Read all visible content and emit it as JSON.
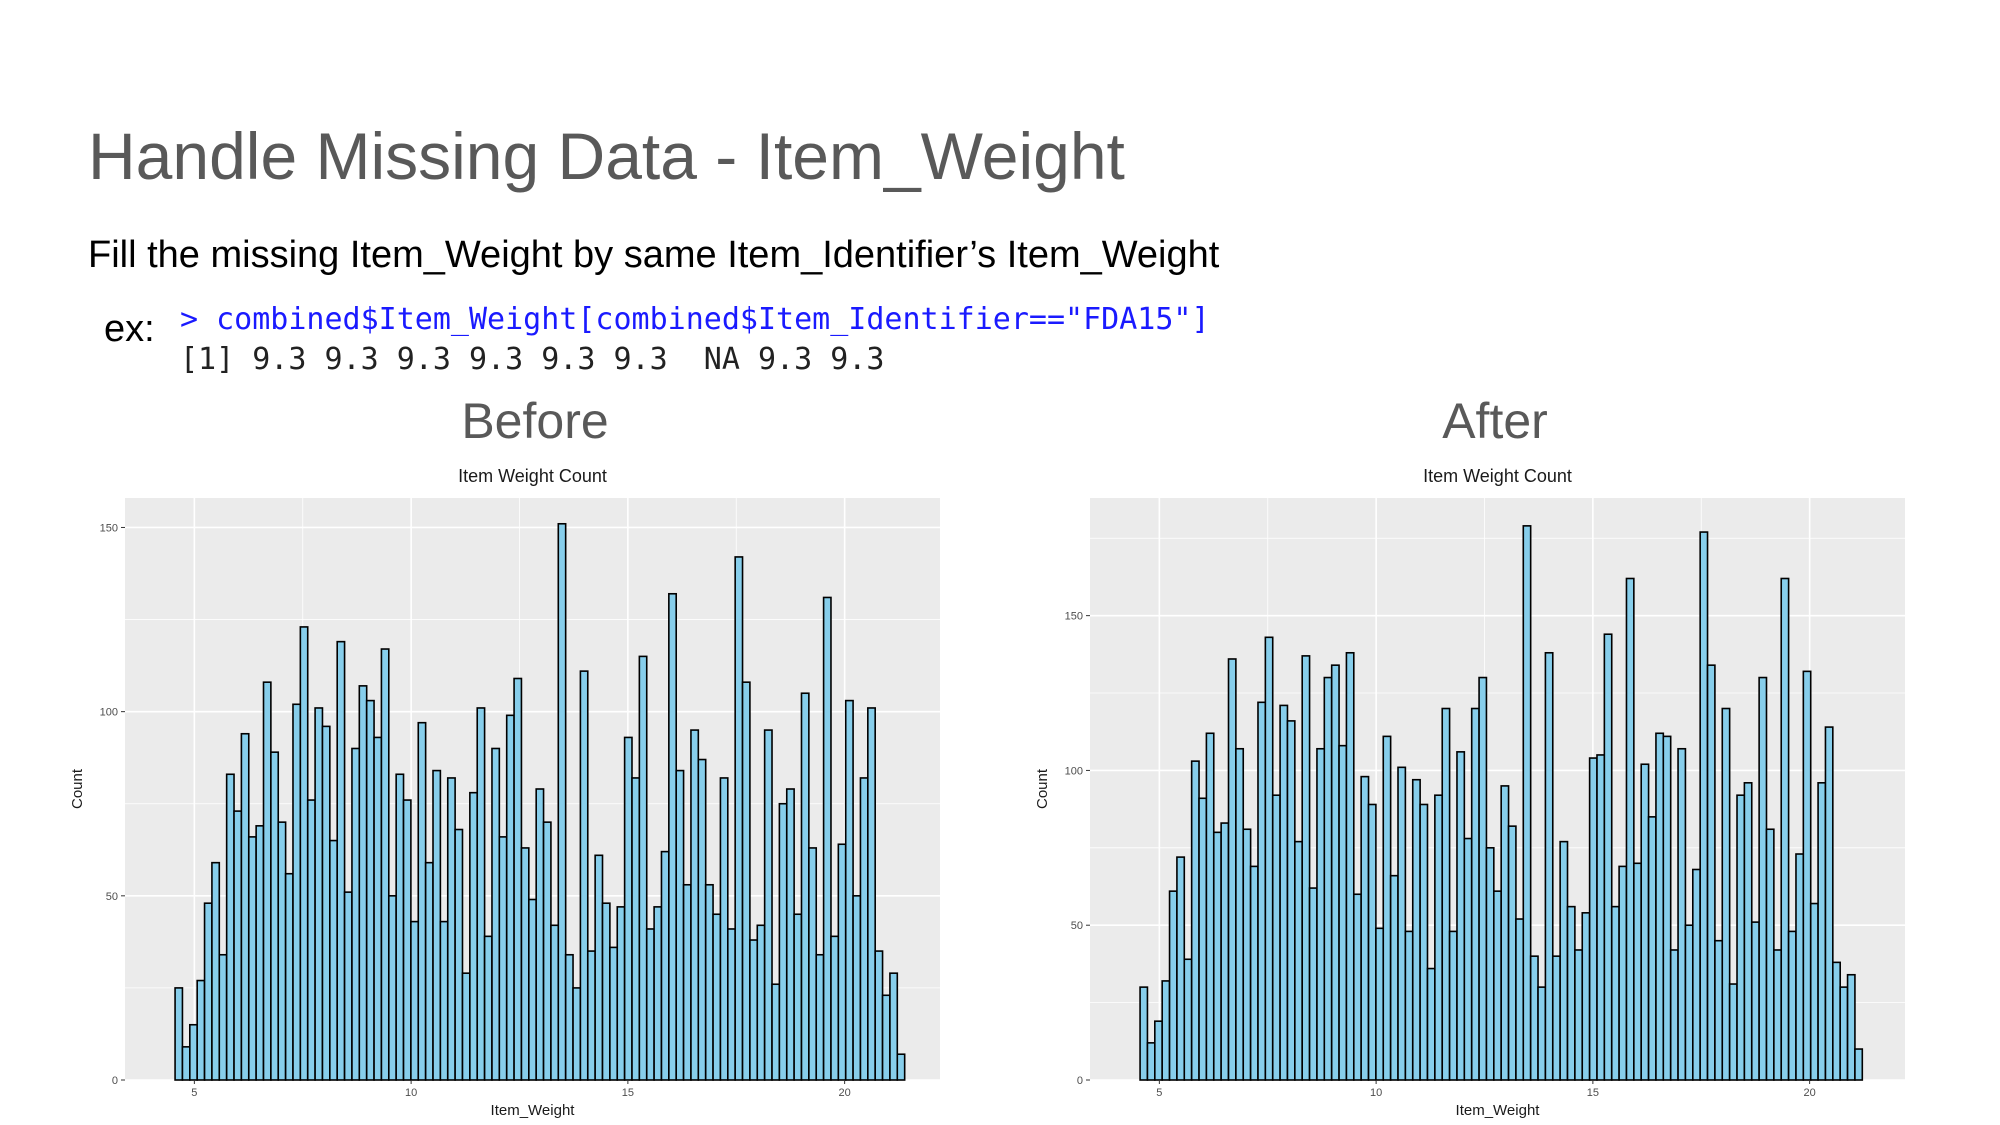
{
  "slide": {
    "title": "Handle Missing Data - Item_Weight",
    "subtitle": "Fill the missing Item_Weight by same Item_Identifier’s Item_Weight",
    "example_label": "ex:",
    "code_command": "> combined$Item_Weight[combined$Item_Identifier==\"FDA15\"]",
    "code_output": "[1] 9.3 9.3 9.3 9.3 9.3 9.3  NA 9.3 9.3"
  },
  "panels": [
    {
      "heading": "Before"
    },
    {
      "heading": "After"
    }
  ],
  "colors": {
    "bar_fill": "#87ceeb",
    "bar_stroke": "#000000",
    "panel_background": "#ebebeb",
    "grid": "#ffffff"
  },
  "chart_data": [
    {
      "type": "bar",
      "title": "Item Weight Count",
      "xlabel": "Item_Weight",
      "ylabel": "Count",
      "x_ticks": [
        5,
        10,
        15,
        20
      ],
      "y_ticks": [
        0,
        50,
        100,
        150
      ],
      "xlim": [
        3.4,
        22.2
      ],
      "ylim": [
        0,
        158
      ],
      "bin_start": 4.555,
      "bin_width": 0.17,
      "grid": true,
      "values": [
        25,
        9,
        15,
        27,
        48,
        59,
        34,
        83,
        73,
        94,
        66,
        69,
        108,
        89,
        70,
        56,
        102,
        123,
        76,
        101,
        96,
        65,
        119,
        51,
        90,
        107,
        103,
        93,
        117,
        50,
        83,
        76,
        43,
        97,
        59,
        84,
        43,
        82,
        68,
        29,
        78,
        101,
        39,
        90,
        66,
        99,
        109,
        63,
        49,
        79,
        70,
        42,
        151,
        34,
        25,
        111,
        35,
        61,
        48,
        36,
        47,
        93,
        82,
        115,
        41,
        47,
        62,
        132,
        84,
        53,
        95,
        87,
        53,
        45,
        82,
        41,
        142,
        108,
        38,
        42,
        95,
        26,
        75,
        79,
        45,
        105,
        63,
        34,
        131,
        39,
        64,
        103,
        50,
        82,
        101,
        35,
        23,
        29,
        7
      ]
    },
    {
      "type": "bar",
      "title": "Item Weight Count",
      "xlabel": "Item_Weight",
      "ylabel": "Count",
      "x_ticks": [
        5,
        10,
        15,
        20
      ],
      "y_ticks": [
        0,
        50,
        100,
        150
      ],
      "xlim": [
        3.4,
        22.2
      ],
      "ylim": [
        0,
        188
      ],
      "bin_start": 4.555,
      "bin_width": 0.17,
      "grid": true,
      "values": [
        30,
        12,
        19,
        32,
        61,
        72,
        39,
        103,
        91,
        112,
        80,
        83,
        136,
        107,
        81,
        69,
        122,
        143,
        92,
        121,
        116,
        77,
        137,
        62,
        107,
        130,
        134,
        108,
        138,
        60,
        98,
        89,
        49,
        111,
        66,
        101,
        48,
        97,
        89,
        36,
        92,
        120,
        48,
        106,
        78,
        120,
        130,
        75,
        61,
        95,
        82,
        52,
        179,
        40,
        30,
        138,
        40,
        77,
        56,
        42,
        54,
        104,
        105,
        144,
        56,
        69,
        162,
        70,
        102,
        85,
        112,
        111,
        42,
        107,
        50,
        68,
        177,
        134,
        45,
        120,
        31,
        92,
        96,
        51,
        130,
        81,
        42,
        162,
        48,
        73,
        132,
        57,
        96,
        114,
        38,
        30,
        34,
        10
      ]
    }
  ]
}
